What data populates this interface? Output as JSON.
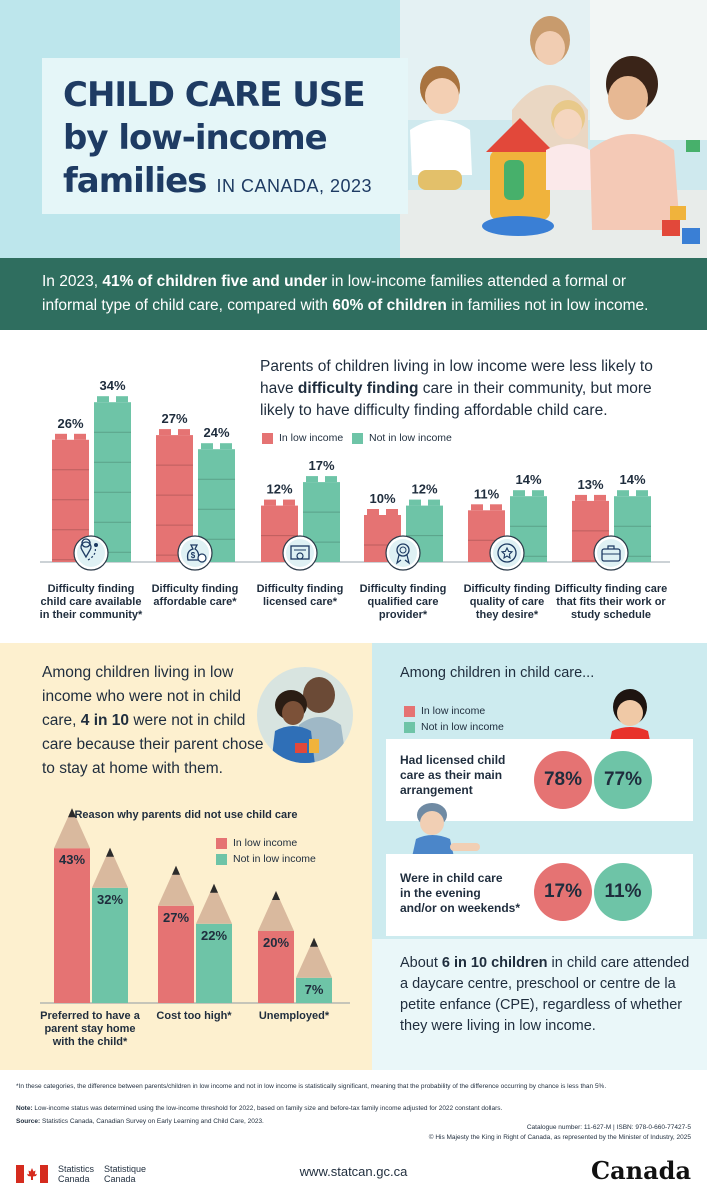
{
  "header": {
    "title_line1": "CHILD CARE USE",
    "title_line2": "by low-income",
    "title_line3": "families",
    "title_sub": "IN CANADA, 2023"
  },
  "intro": {
    "p1": "In 2023, ",
    "b1": "41% of children five and under",
    "p2": " in low-income families attended a formal or informal type of child care, compared with ",
    "b2": "60% of children",
    "p3": " in families not in low income."
  },
  "bar_section": {
    "heading_p1": "Parents of children living in low income were less likely to have ",
    "heading_b": "difficulty finding",
    "heading_p2": " care in their community, but more likely to have difficulty finding affordable child care.",
    "legend_low": "In low income",
    "legend_not": "Not in low income"
  },
  "colors": {
    "low_income": "#e57373",
    "not_low_income": "#6ec4a7",
    "dark_navy": "#1e3b63",
    "band_green": "#2f6e5f"
  },
  "chart_data": [
    {
      "type": "bar",
      "categories": [
        [
          "Difficulty finding",
          "child care available",
          "in their community*"
        ],
        [
          "Difficulty finding",
          "affordable care*"
        ],
        [
          "Difficulty finding",
          "licensed care*"
        ],
        [
          "Difficulty finding",
          "qualified care",
          "provider*"
        ],
        [
          "Difficulty finding",
          "quality of care",
          "they desire*"
        ],
        [
          "Difficulty finding care",
          "that fits their work or",
          "study schedule"
        ]
      ],
      "icons": [
        "map-pin-icon",
        "money-bag-icon",
        "certificate-icon",
        "award-ribbon-icon",
        "star-badge-icon",
        "briefcase-icon"
      ],
      "series": [
        {
          "name": "In low income",
          "values": [
            26,
            27,
            12,
            10,
            11,
            13
          ],
          "labels": [
            "26%",
            "27%",
            "12%",
            "10%",
            "11%",
            "13%"
          ]
        },
        {
          "name": "Not in low income",
          "values": [
            34,
            24,
            17,
            12,
            14,
            14
          ],
          "labels": [
            "34%",
            "24%",
            "17%",
            "12%",
            "14%",
            "14%"
          ]
        }
      ]
    },
    {
      "type": "bar",
      "title": "Reason why parents did not use child care",
      "categories": [
        [
          "Preferred to have a",
          "parent stay home",
          "with the child*"
        ],
        [
          "Cost too high*"
        ],
        [
          "Unemployed*"
        ]
      ],
      "series": [
        {
          "name": "In low income",
          "values": [
            43,
            27,
            20
          ],
          "labels": [
            "43%",
            "27%",
            "20%"
          ]
        },
        {
          "name": "Not in low income",
          "values": [
            32,
            22,
            7
          ],
          "labels": [
            "32%",
            "22%",
            "7%"
          ]
        }
      ]
    },
    {
      "type": "table",
      "title": "Among children in child care...",
      "rows": [
        {
          "label": [
            "Had licensed child",
            "care as their main",
            "arrangement"
          ],
          "low": "78%",
          "not": "77%"
        },
        {
          "label": [
            "Were in child care",
            "in the evening",
            "and/or on weekends*"
          ],
          "low": "17%",
          "not": "11%"
        }
      ]
    }
  ],
  "left_panel": {
    "p1": "Among children living in low income who were not in child care, ",
    "b": "4 in 10",
    "p2": " were not in child care because their parent chose to stay at home with them.",
    "legend_low": "In low income",
    "legend_not": "Not in low income"
  },
  "right_panel": {
    "heading": "Among children in child care...",
    "legend_low": "In low income",
    "legend_not": "Not in low income",
    "bottom_p1": "About ",
    "bottom_b": "6 in 10 children",
    "bottom_p2": " in child care attended a daycare centre, preschool or centre de la petite enfance (CPE), regardless of whether they were living in low income."
  },
  "footnotes": {
    "star_note": "*In these categories, the difference between parents/children in low income and not in low income is statistically significant, meaning that the probability of the difference occurring by chance is less than 5%.",
    "note_label": "Note:",
    "note_text": " Low-income status was determined using the low-income threshold for 2022, based on family size and before-tax family income adjusted for 2022 constant dollars.",
    "source_label": "Source:",
    "source_text": " Statistics Canada, Canadian Survey on Early Learning and Child Care, 2023.",
    "catalogue": "Catalogue number: 11-627-M  |  ISBN: 978-0-660-77427-5",
    "copyright": "© His Majesty the King in Right of Canada, as represented by the Minister of Industry, 2025"
  },
  "footer": {
    "sc_en_1": "Statistics",
    "sc_en_2": "Canada",
    "sc_fr_1": "Statistique",
    "sc_fr_2": "Canada",
    "url": "www.statcan.gc.ca",
    "wordmark": "Canada"
  }
}
